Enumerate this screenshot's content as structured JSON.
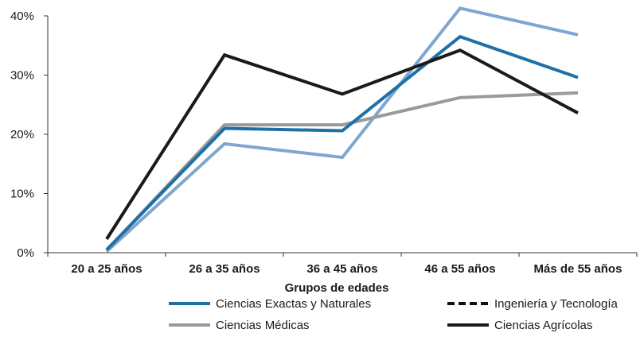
{
  "chart_data": {
    "type": "line",
    "xlabel": "Grupos de edades",
    "ylabel": "",
    "ylim": [
      0,
      40
    ],
    "yticks": [
      "0%",
      "10%",
      "20%",
      "30%",
      "40%"
    ],
    "categories": [
      "20 a 25 años",
      "26 a 35 años",
      "36 a 45 años",
      "46 a 55 años",
      "Más de 55 años"
    ],
    "grid": false,
    "legend_position": "bottom",
    "series": [
      {
        "name": "Ciencias Exactas y Naturales",
        "color": "#1f6fa8",
        "dash": "solid",
        "values": [
          0.5,
          21.0,
          20.6,
          36.5,
          29.6
        ]
      },
      {
        "name": "Ingeniería y Tecnología",
        "color": "#111111",
        "dash": "dashed",
        "values": [
          null,
          null,
          null,
          null,
          null
        ]
      },
      {
        "name": "Ciencias Médicas",
        "color": "#9a9a9a",
        "dash": "solid",
        "values": [
          0.4,
          21.6,
          21.6,
          26.2,
          27.0
        ]
      },
      {
        "name": "Ciencias  Agrícolas",
        "color": "#1a1a1a",
        "dash": "solid",
        "values": [
          2.3,
          33.4,
          26.8,
          34.2,
          23.6
        ]
      },
      {
        "name": "",
        "color": "#7ea6cf",
        "dash": "solid",
        "values": [
          0.2,
          18.4,
          16.1,
          41.3,
          36.8
        ]
      }
    ]
  }
}
